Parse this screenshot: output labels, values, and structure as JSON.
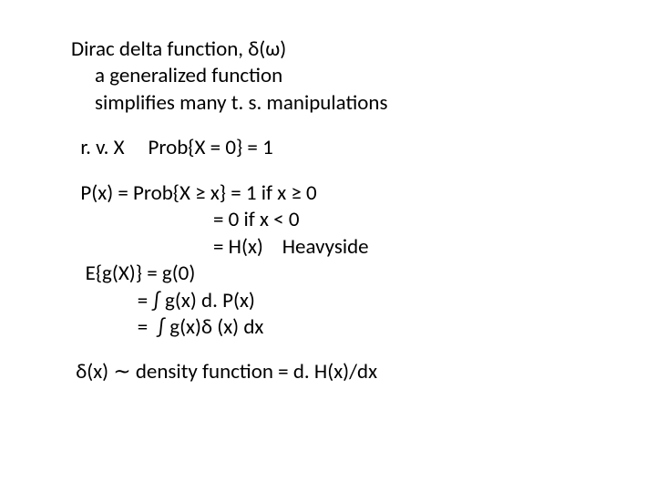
{
  "slide": {
    "indent1": "     ",
    "indent2": "                              ",
    "title_l1": "Dirac delta function, δ(ω)",
    "title_l2": "a generalized function",
    "title_l3": "simplifies many t. s. manipulations",
    "rv_line": "  r. v. X     Prob{X = 0} = 1",
    "px_l1": "  P(x) = Prob{X ≥ x} = 1 if x ≥ 0",
    "px_l2": "= 0 if x < 0",
    "px_l3": "= H(x)    Heavyside",
    "eg_l1": "   E{g(X)} = g(0)",
    "eg_l2": "              = ∫ g(x) d. P(x)",
    "eg_l3": "              =  ∫ g(x)δ (x) dx",
    "last": " δ(x) ∼ density function = d. H(x)/dx"
  }
}
